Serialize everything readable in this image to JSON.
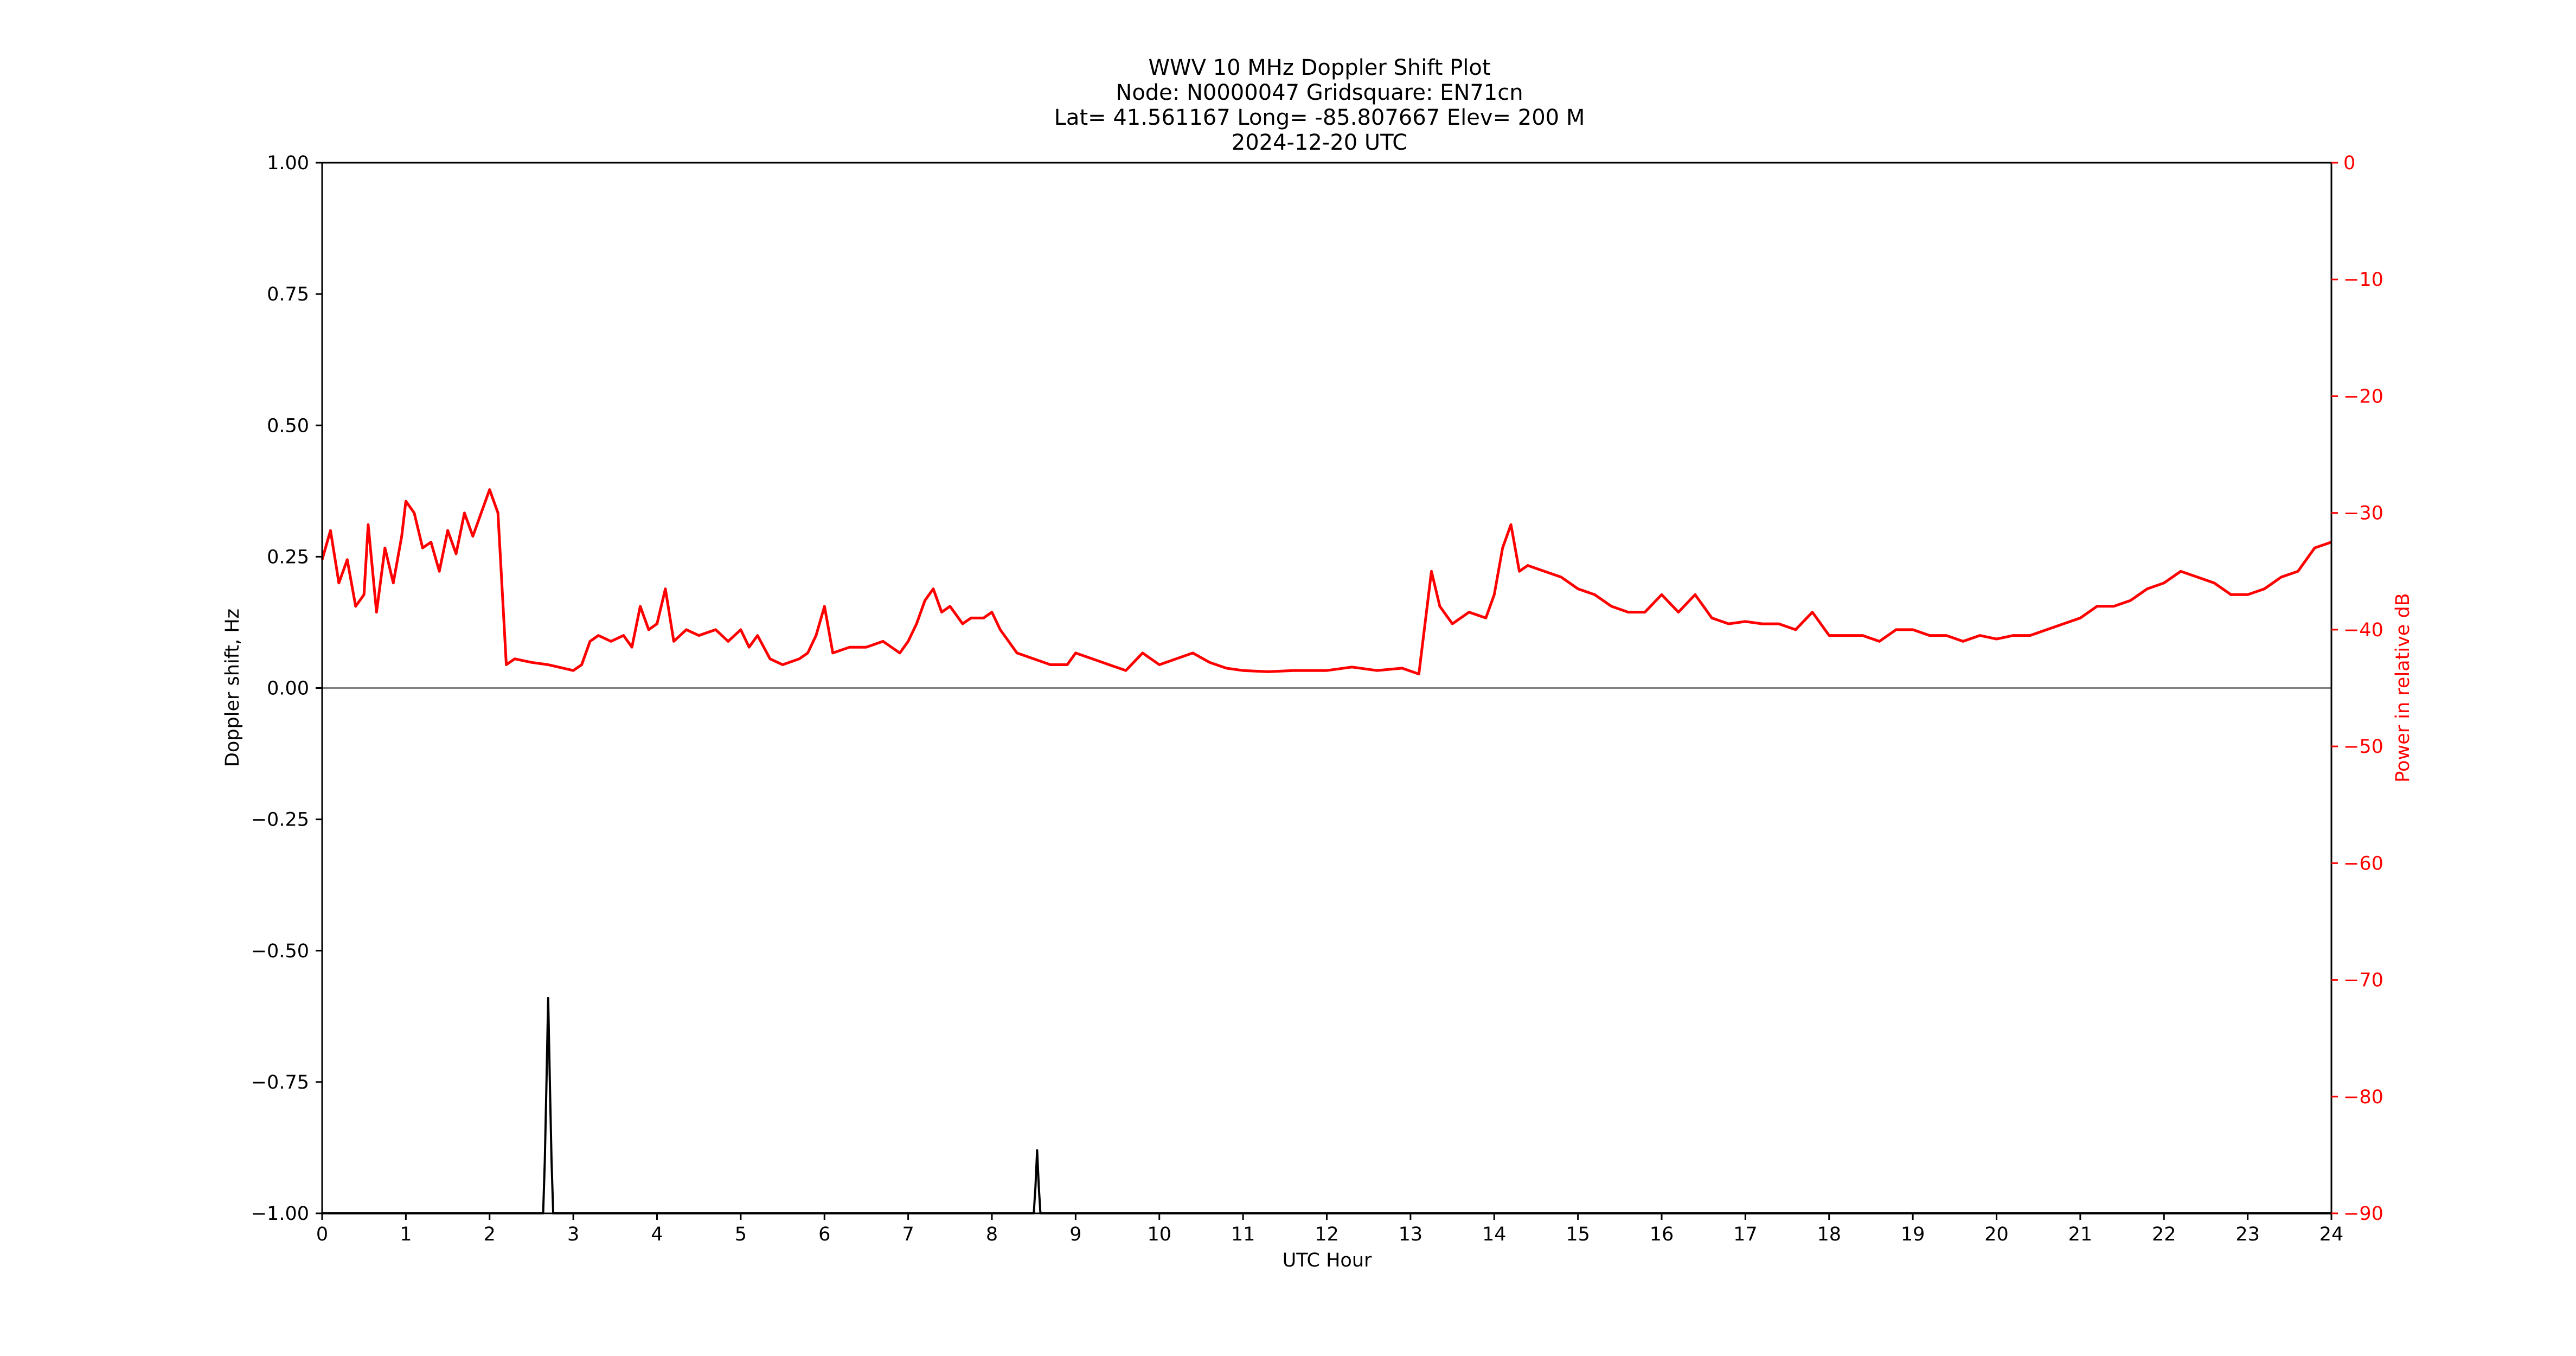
{
  "chart_data": {
    "type": "line",
    "title": "WWV 10 MHz Doppler Shift Plot",
    "subtitle_lines": [
      "Node:  N0000047     Gridsquare:  EN71cn",
      "Lat= 41.561167    Long= -85.807667    Elev= 200 M",
      "2024-12-20  UTC"
    ],
    "xlabel": "UTC Hour",
    "ylabel": "Doppler shift, Hz",
    "ylabel_right": "Power in relative dB",
    "xlim": [
      0,
      24
    ],
    "ylim": [
      -1.0,
      1.0
    ],
    "ylim_right": [
      -90,
      0
    ],
    "xticks": [
      "0",
      "1",
      "2",
      "3",
      "4",
      "5",
      "6",
      "7",
      "8",
      "9",
      "10",
      "11",
      "12",
      "13",
      "14",
      "15",
      "16",
      "17",
      "18",
      "19",
      "20",
      "21",
      "22",
      "23",
      "24"
    ],
    "yticks": [
      "1.00",
      "0.75",
      "0.50",
      "0.25",
      "0.00",
      "−0.25",
      "−0.50",
      "−0.75",
      "−1.00"
    ],
    "yticks_right": [
      "0",
      "−10",
      "−20",
      "−30",
      "−40",
      "−50",
      "−60",
      "−70",
      "−80",
      "−90"
    ],
    "grid": false,
    "zero_line": 0.0,
    "colors": {
      "doppler": "#000000",
      "power": "#ff0000",
      "zero_line": "#808080",
      "right_axis": "#ff0000"
    },
    "series": [
      {
        "axis": "left",
        "points": [
          [
            0,
            -1.0
          ],
          [
            2.64,
            -1.0
          ],
          [
            2.66,
            -0.9
          ],
          [
            2.68,
            -0.75
          ],
          [
            2.7,
            -0.59
          ],
          [
            2.72,
            -0.75
          ],
          [
            2.74,
            -0.9
          ],
          [
            2.76,
            -1.0
          ],
          [
            8.5,
            -1.0
          ],
          [
            8.52,
            -0.95
          ],
          [
            8.54,
            -0.88
          ],
          [
            8.56,
            -0.95
          ],
          [
            8.58,
            -1.0
          ],
          [
            24,
            -1.0
          ]
        ]
      },
      {
        "axis": "right",
        "points": [
          [
            0.0,
            -34
          ],
          [
            0.1,
            -31.5
          ],
          [
            0.2,
            -36
          ],
          [
            0.3,
            -34
          ],
          [
            0.4,
            -38
          ],
          [
            0.5,
            -37
          ],
          [
            0.55,
            -31
          ],
          [
            0.65,
            -38.5
          ],
          [
            0.75,
            -33
          ],
          [
            0.85,
            -36
          ],
          [
            0.95,
            -32
          ],
          [
            1.0,
            -29
          ],
          [
            1.1,
            -30
          ],
          [
            1.2,
            -33
          ],
          [
            1.3,
            -32.5
          ],
          [
            1.4,
            -35
          ],
          [
            1.5,
            -31.5
          ],
          [
            1.6,
            -33.5
          ],
          [
            1.7,
            -30
          ],
          [
            1.8,
            -32
          ],
          [
            1.9,
            -30
          ],
          [
            2.0,
            -28
          ],
          [
            2.1,
            -30
          ],
          [
            2.2,
            -43
          ],
          [
            2.3,
            -42.5
          ],
          [
            2.5,
            -42.8
          ],
          [
            2.7,
            -43
          ],
          [
            3.0,
            -43.5
          ],
          [
            3.1,
            -43
          ],
          [
            3.2,
            -41
          ],
          [
            3.3,
            -40.5
          ],
          [
            3.45,
            -41
          ],
          [
            3.6,
            -40.5
          ],
          [
            3.7,
            -41.5
          ],
          [
            3.8,
            -38
          ],
          [
            3.9,
            -40
          ],
          [
            4.0,
            -39.5
          ],
          [
            4.1,
            -36.5
          ],
          [
            4.2,
            -41
          ],
          [
            4.35,
            -40
          ],
          [
            4.5,
            -40.5
          ],
          [
            4.7,
            -40
          ],
          [
            4.85,
            -41
          ],
          [
            5.0,
            -40
          ],
          [
            5.1,
            -41.5
          ],
          [
            5.2,
            -40.5
          ],
          [
            5.35,
            -42.5
          ],
          [
            5.5,
            -43
          ],
          [
            5.7,
            -42.5
          ],
          [
            5.8,
            -42
          ],
          [
            5.9,
            -40.5
          ],
          [
            6.0,
            -38
          ],
          [
            6.1,
            -42
          ],
          [
            6.3,
            -41.5
          ],
          [
            6.5,
            -41.5
          ],
          [
            6.7,
            -41
          ],
          [
            6.9,
            -42
          ],
          [
            7.0,
            -41
          ],
          [
            7.1,
            -39.5
          ],
          [
            7.2,
            -37.5
          ],
          [
            7.3,
            -36.5
          ],
          [
            7.4,
            -38.5
          ],
          [
            7.5,
            -38
          ],
          [
            7.65,
            -39.5
          ],
          [
            7.75,
            -39
          ],
          [
            7.9,
            -39
          ],
          [
            8.0,
            -38.5
          ],
          [
            8.1,
            -40
          ],
          [
            8.3,
            -42
          ],
          [
            8.5,
            -42.5
          ],
          [
            8.7,
            -43
          ],
          [
            8.9,
            -43
          ],
          [
            9.0,
            -42
          ],
          [
            9.2,
            -42.5
          ],
          [
            9.4,
            -43
          ],
          [
            9.6,
            -43.5
          ],
          [
            9.8,
            -42
          ],
          [
            10.0,
            -43
          ],
          [
            10.2,
            -42.5
          ],
          [
            10.4,
            -42
          ],
          [
            10.6,
            -42.8
          ],
          [
            10.8,
            -43.3
          ],
          [
            11.0,
            -43.5
          ],
          [
            11.3,
            -43.6
          ],
          [
            11.6,
            -43.5
          ],
          [
            12.0,
            -43.5
          ],
          [
            12.3,
            -43.2
          ],
          [
            12.6,
            -43.5
          ],
          [
            12.9,
            -43.3
          ],
          [
            13.1,
            -43.8
          ],
          [
            13.25,
            -35
          ],
          [
            13.35,
            -38
          ],
          [
            13.5,
            -39.5
          ],
          [
            13.7,
            -38.5
          ],
          [
            13.9,
            -39
          ],
          [
            14.0,
            -37
          ],
          [
            14.1,
            -33
          ],
          [
            14.2,
            -31
          ],
          [
            14.3,
            -35
          ],
          [
            14.4,
            -34.5
          ],
          [
            14.6,
            -35
          ],
          [
            14.8,
            -35.5
          ],
          [
            15.0,
            -36.5
          ],
          [
            15.2,
            -37
          ],
          [
            15.4,
            -38
          ],
          [
            15.6,
            -38.5
          ],
          [
            15.8,
            -38.5
          ],
          [
            16.0,
            -37
          ],
          [
            16.2,
            -38.5
          ],
          [
            16.4,
            -37
          ],
          [
            16.6,
            -39
          ],
          [
            16.8,
            -39.5
          ],
          [
            17.0,
            -39.3
          ],
          [
            17.2,
            -39.5
          ],
          [
            17.4,
            -39.5
          ],
          [
            17.6,
            -40
          ],
          [
            17.8,
            -38.5
          ],
          [
            18.0,
            -40.5
          ],
          [
            18.2,
            -40.5
          ],
          [
            18.4,
            -40.5
          ],
          [
            18.6,
            -41
          ],
          [
            18.8,
            -40
          ],
          [
            19.0,
            -40
          ],
          [
            19.2,
            -40.5
          ],
          [
            19.4,
            -40.5
          ],
          [
            19.6,
            -41
          ],
          [
            19.8,
            -40.5
          ],
          [
            20.0,
            -40.8
          ],
          [
            20.2,
            -40.5
          ],
          [
            20.4,
            -40.5
          ],
          [
            20.6,
            -40
          ],
          [
            20.8,
            -39.5
          ],
          [
            21.0,
            -39
          ],
          [
            21.2,
            -38
          ],
          [
            21.4,
            -38
          ],
          [
            21.6,
            -37.5
          ],
          [
            21.8,
            -36.5
          ],
          [
            22.0,
            -36
          ],
          [
            22.2,
            -35
          ],
          [
            22.4,
            -35.5
          ],
          [
            22.6,
            -36
          ],
          [
            22.8,
            -37
          ],
          [
            23.0,
            -37
          ],
          [
            23.2,
            -36.5
          ],
          [
            23.4,
            -35.5
          ],
          [
            23.6,
            -35
          ],
          [
            23.8,
            -33
          ],
          [
            24.0,
            -32.5
          ]
        ]
      }
    ]
  }
}
